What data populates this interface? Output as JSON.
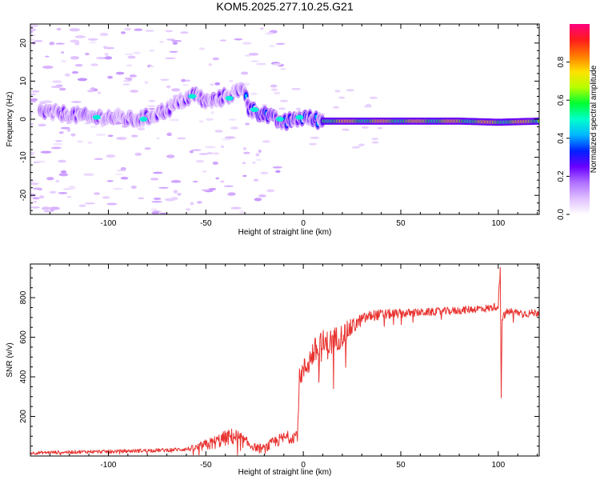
{
  "title": "KOM5.2025.277.10.25.G21",
  "colors": {
    "snr_line": "#e8322f",
    "axis": "#000000",
    "cmap": [
      "#ffffff",
      "#e0c0ff",
      "#b070ff",
      "#6a00ff",
      "#0020ff",
      "#00b7ff",
      "#00ffcc",
      "#00ff33",
      "#b7ff00",
      "#ffe100",
      "#ff7a00",
      "#ff1c1c",
      "#ff007f"
    ]
  },
  "chart_data": [
    {
      "type": "heatmap",
      "name": "spectrogram",
      "xlabel": "Height of straight line (km)",
      "ylabel": "Frequency (Hz)",
      "xlim": [
        -140,
        121
      ],
      "ylim": [
        -25,
        25
      ],
      "xticks": [
        -100,
        -50,
        0,
        50,
        100
      ],
      "yticks": [
        -20,
        -10,
        0,
        10,
        20
      ],
      "ridge": [
        [
          -140,
          2
        ],
        [
          -125,
          1.5
        ],
        [
          -115,
          1
        ],
        [
          -110,
          0.5
        ],
        [
          -105,
          0.5
        ],
        [
          -100,
          0.5
        ],
        [
          -95,
          0.5
        ],
        [
          -90,
          0
        ],
        [
          -85,
          0
        ],
        [
          -80,
          0.5
        ],
        [
          -75,
          1.5
        ],
        [
          -70,
          2.5
        ],
        [
          -65,
          4
        ],
        [
          -60,
          5.5
        ],
        [
          -55,
          6.5
        ],
        [
          -50,
          4.5
        ],
        [
          -45,
          5
        ],
        [
          -40,
          6
        ],
        [
          -35,
          7
        ],
        [
          -30,
          8
        ],
        [
          -28,
          3
        ],
        [
          -25,
          2
        ],
        [
          -20,
          1.5
        ],
        [
          -15,
          0
        ],
        [
          -10,
          -1
        ],
        [
          -5,
          0
        ],
        [
          0,
          0.5
        ],
        [
          5,
          0
        ],
        [
          10,
          -0.5
        ],
        [
          20,
          -0.5
        ],
        [
          40,
          -0.5
        ],
        [
          60,
          -0.5
        ],
        [
          80,
          -0.5
        ],
        [
          100,
          -0.8
        ],
        [
          121,
          -0.5
        ]
      ],
      "colorbar": {
        "label": "Normalized spectral amplitude",
        "ticks": [
          "0.0",
          "0.2",
          "0.4",
          "0.6",
          "0.8"
        ],
        "range": [
          0,
          1
        ]
      }
    },
    {
      "type": "line",
      "name": "snr",
      "xlabel": "Height of straight line (km)",
      "ylabel": "SNR (v/v)",
      "xlim": [
        -140,
        121
      ],
      "ylim": [
        0,
        970
      ],
      "xticks": [
        -100,
        -50,
        0,
        50,
        100
      ],
      "yticks": [
        200,
        400,
        600,
        800
      ],
      "series": [
        {
          "name": "SNR",
          "points": [
            [
              -140,
              15
            ],
            [
              -130,
              18
            ],
            [
              -120,
              20
            ],
            [
              -110,
              22
            ],
            [
              -100,
              22
            ],
            [
              -90,
              25
            ],
            [
              -80,
              28
            ],
            [
              -70,
              30
            ],
            [
              -60,
              35
            ],
            [
              -55,
              40
            ],
            [
              -50,
              55
            ],
            [
              -45,
              70
            ],
            [
              -40,
              90
            ],
            [
              -35,
              100
            ],
            [
              -30,
              70
            ],
            [
              -25,
              45
            ],
            [
              -20,
              35
            ],
            [
              -15,
              70
            ],
            [
              -10,
              90
            ],
            [
              -5,
              100
            ],
            [
              -3,
              110
            ],
            [
              -2,
              400
            ],
            [
              0,
              430
            ],
            [
              3,
              480
            ],
            [
              5,
              520
            ],
            [
              10,
              560
            ],
            [
              12,
              560
            ],
            [
              15,
              580
            ],
            [
              20,
              610
            ],
            [
              25,
              650
            ],
            [
              30,
              690
            ],
            [
              35,
              710
            ],
            [
              40,
              715
            ],
            [
              50,
              720
            ],
            [
              60,
              725
            ],
            [
              70,
              730
            ],
            [
              80,
              735
            ],
            [
              90,
              745
            ],
            [
              95,
              745
            ],
            [
              100,
              760
            ],
            [
              101,
              940
            ],
            [
              101.5,
              300
            ],
            [
              102,
              700
            ],
            [
              105,
              730
            ],
            [
              110,
              725
            ],
            [
              115,
              720
            ],
            [
              121,
              725
            ]
          ],
          "noise": [
            [
              -140,
              8
            ],
            [
              -60,
              10
            ],
            [
              -50,
              30
            ],
            [
              -35,
              45
            ],
            [
              -25,
              20
            ],
            [
              -15,
              30
            ],
            [
              -3,
              35
            ],
            [
              0,
              60
            ],
            [
              10,
              80
            ],
            [
              20,
              60
            ],
            [
              30,
              30
            ],
            [
              60,
              20
            ],
            [
              121,
              20
            ]
          ]
        }
      ]
    }
  ]
}
